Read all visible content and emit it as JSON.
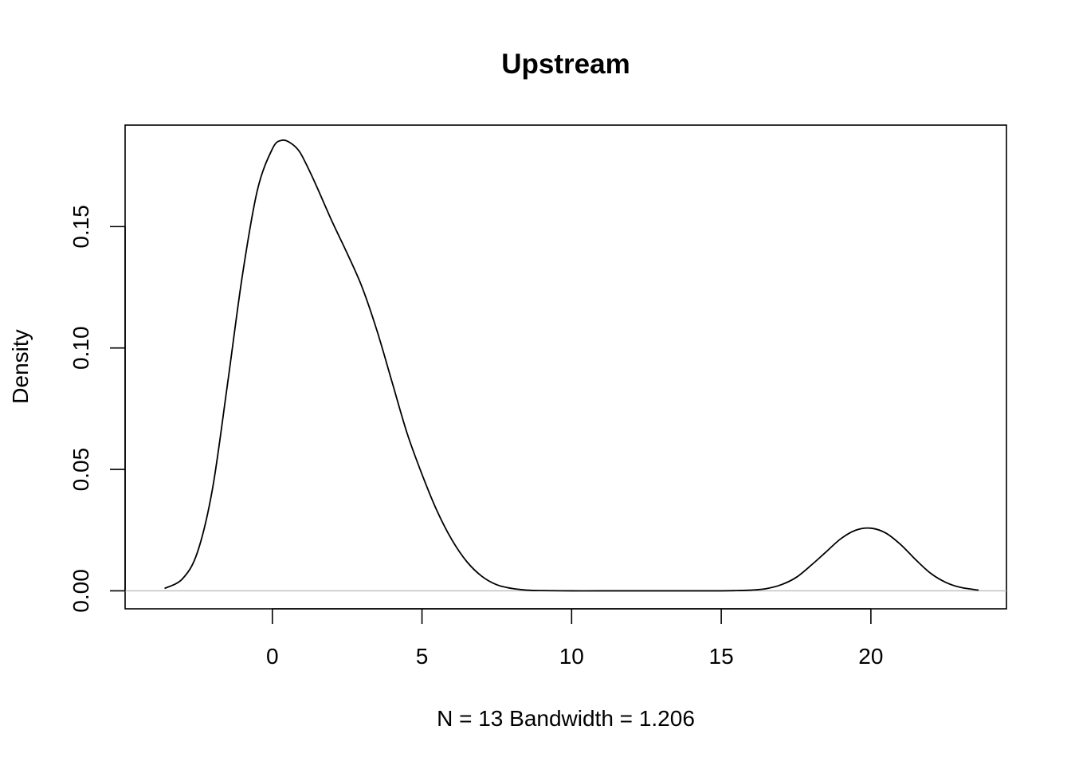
{
  "chart_data": {
    "type": "line",
    "title": "Upstream",
    "xlabel": "N = 13   Bandwidth = 1.206",
    "ylabel": "Density",
    "xlim": [
      -4.92,
      24.53
    ],
    "ylim": [
      -0.0074,
      0.1918
    ],
    "x_ticks": [
      0,
      5,
      10,
      15,
      20
    ],
    "x_tick_labels": [
      "0",
      "5",
      "10",
      "15",
      "20"
    ],
    "y_ticks": [
      0,
      0.05,
      0.1,
      0.15
    ],
    "y_tick_labels": [
      "0.00",
      "0.05",
      "0.10",
      "0.15"
    ],
    "baseline": 0,
    "grid": false,
    "legend": "none",
    "series": [
      {
        "x": [
          -3.6,
          -3.0,
          -2.5,
          -2.0,
          -1.5,
          -1.0,
          -0.5,
          0.0,
          0.3,
          0.6,
          0.9,
          1.2,
          1.5,
          2.0,
          2.5,
          3.0,
          3.5,
          4.0,
          4.5,
          5.0,
          5.5,
          6.0,
          6.5,
          7.0,
          7.5,
          8.0,
          8.5,
          9.0,
          10.0,
          11.0,
          12.0,
          13.0,
          14.0,
          15.0,
          15.5,
          16.0,
          16.5,
          17.0,
          17.5,
          18.0,
          18.5,
          19.0,
          19.5,
          20.0,
          20.5,
          21.0,
          21.5,
          22.0,
          22.5,
          23.0,
          23.6
        ],
        "y": [
          0.001,
          0.005,
          0.016,
          0.042,
          0.085,
          0.13,
          0.165,
          0.182,
          0.1855,
          0.1845,
          0.181,
          0.174,
          0.166,
          0.152,
          0.139,
          0.125,
          0.107,
          0.086,
          0.065,
          0.048,
          0.033,
          0.021,
          0.012,
          0.006,
          0.0025,
          0.001,
          0.0003,
          0.0001,
          0.0,
          0.0,
          0.0,
          0.0,
          0.0,
          0.0,
          0.0001,
          0.0003,
          0.0009,
          0.0025,
          0.0055,
          0.0105,
          0.016,
          0.0215,
          0.025,
          0.0258,
          0.0238,
          0.019,
          0.0128,
          0.0072,
          0.0035,
          0.0014,
          0.0003
        ]
      }
    ]
  }
}
